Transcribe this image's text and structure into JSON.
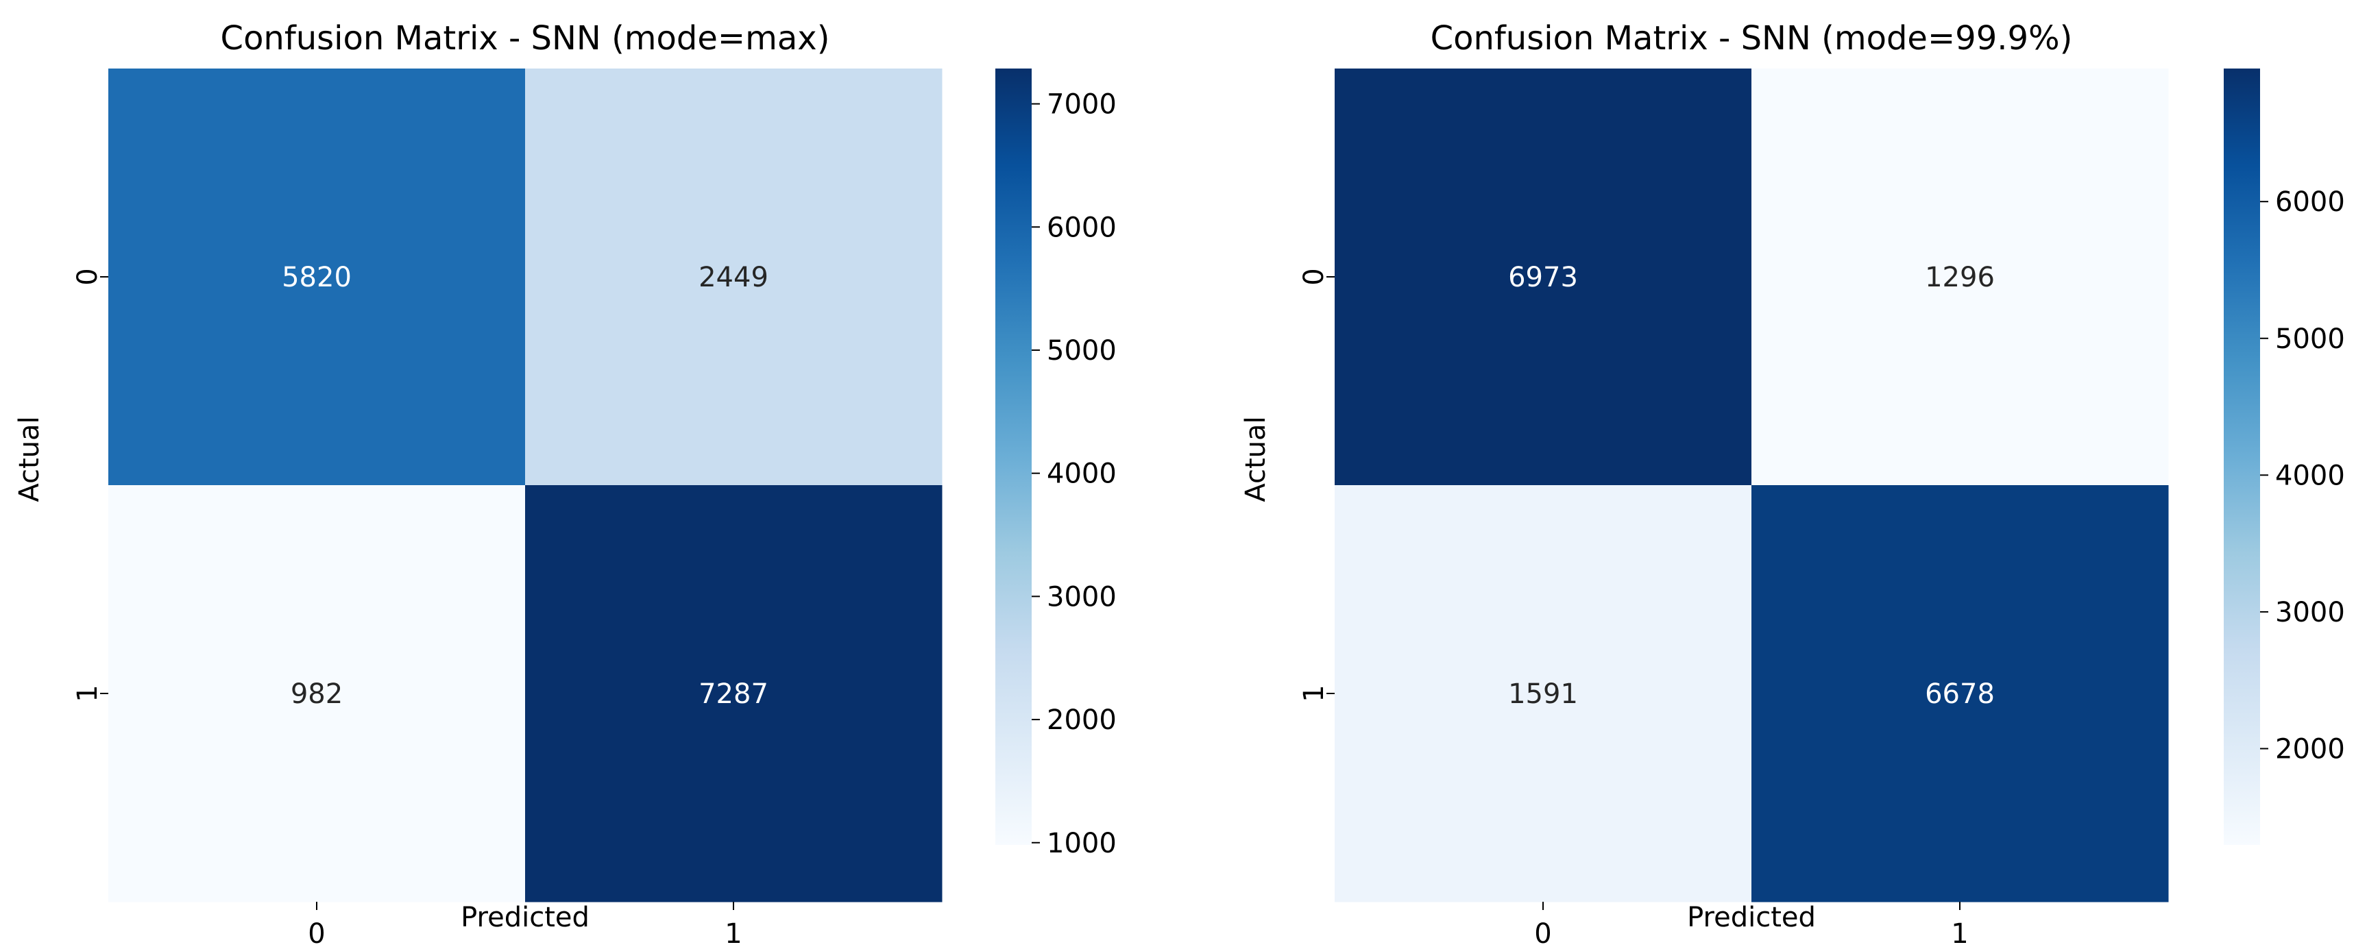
{
  "chart_data": [
    {
      "type": "heatmap",
      "title": "Confusion Matrix - SNN (mode=max)",
      "xlabel": "Predicted",
      "ylabel": "Actual",
      "x_categories": [
        "0",
        "1"
      ],
      "y_categories": [
        "0",
        "1"
      ],
      "values": [
        [
          5820,
          2449
        ],
        [
          982,
          7287
        ]
      ],
      "colormap": "Blues",
      "colorbar": {
        "range": [
          982,
          7287
        ],
        "ticks": [
          1000,
          2000,
          3000,
          4000,
          5000,
          6000,
          7000
        ]
      }
    },
    {
      "type": "heatmap",
      "title": "Confusion Matrix - SNN (mode=99.9%)",
      "xlabel": "Predicted",
      "ylabel": "Actual",
      "x_categories": [
        "0",
        "1"
      ],
      "y_categories": [
        "0",
        "1"
      ],
      "values": [
        [
          6973,
          1296
        ],
        [
          1591,
          6678
        ]
      ],
      "colormap": "Blues",
      "colorbar": {
        "range": [
          1296,
          6973
        ],
        "ticks": [
          2000,
          3000,
          4000,
          5000,
          6000
        ]
      }
    }
  ]
}
